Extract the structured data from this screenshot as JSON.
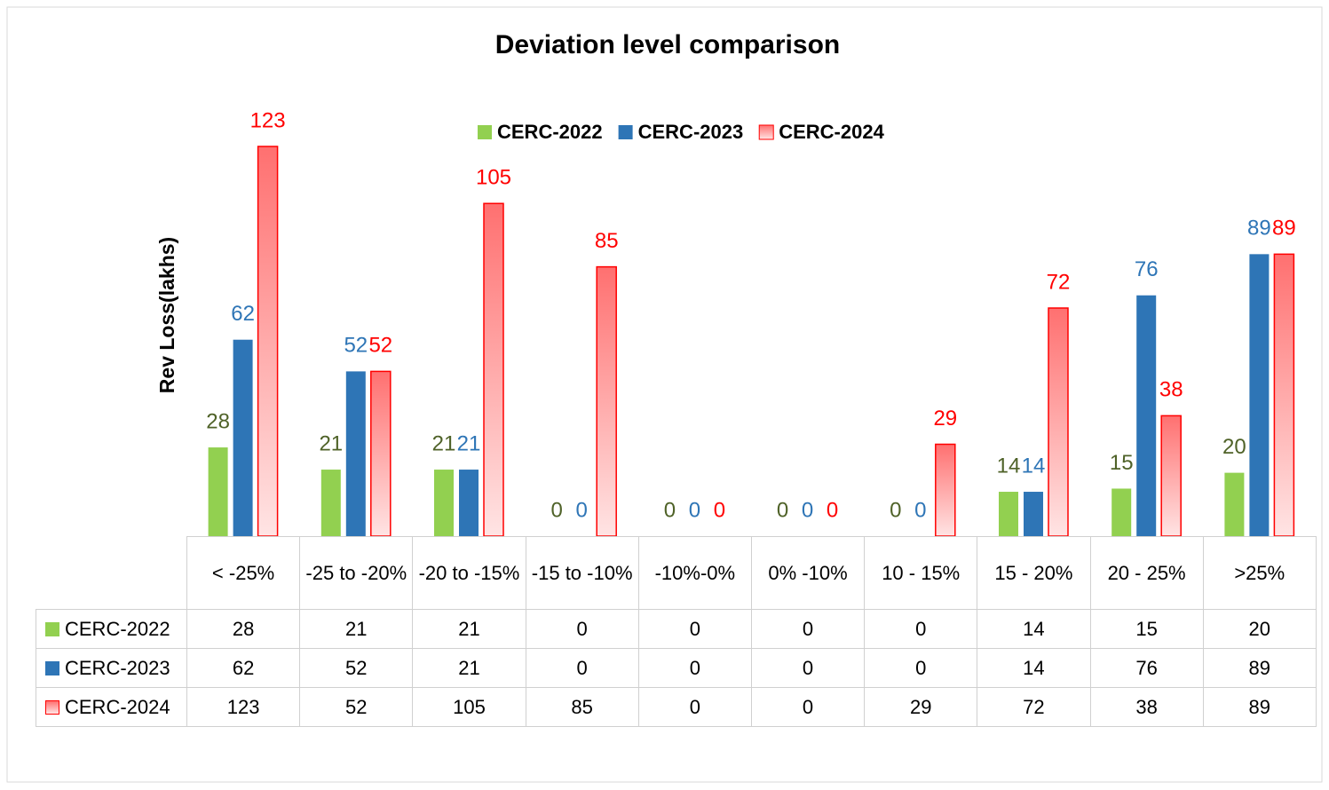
{
  "chart_data": {
    "type": "bar",
    "title": "Deviation level comparison",
    "y_label": "Rev Loss(lakhs)",
    "categories": [
      "< -25%",
      "-25 to -20%",
      "-20 to -15%",
      "-15 to -10%",
      "-10%-0%",
      "0% -10%",
      "10 - 15%",
      "15 - 20%",
      "20 - 25%",
      ">25%"
    ],
    "series": [
      {
        "name": "CERC-2022",
        "color": "#92d050",
        "label_color": "#4f6228",
        "values": [
          28,
          21,
          21,
          0,
          0,
          0,
          0,
          14,
          15,
          20
        ]
      },
      {
        "name": "CERC-2023",
        "color": "#2e75b6",
        "label_color": "#2e75b6",
        "values": [
          62,
          52,
          21,
          0,
          0,
          0,
          0,
          14,
          76,
          89
        ]
      },
      {
        "name": "CERC-2024",
        "color": "#ff0000",
        "label_color": "#ff0000",
        "gradient": true,
        "values": [
          123,
          52,
          105,
          85,
          0,
          0,
          29,
          72,
          38,
          89
        ]
      }
    ],
    "ylim": [
      0,
      130
    ],
    "legend": "top",
    "data_table": true
  }
}
